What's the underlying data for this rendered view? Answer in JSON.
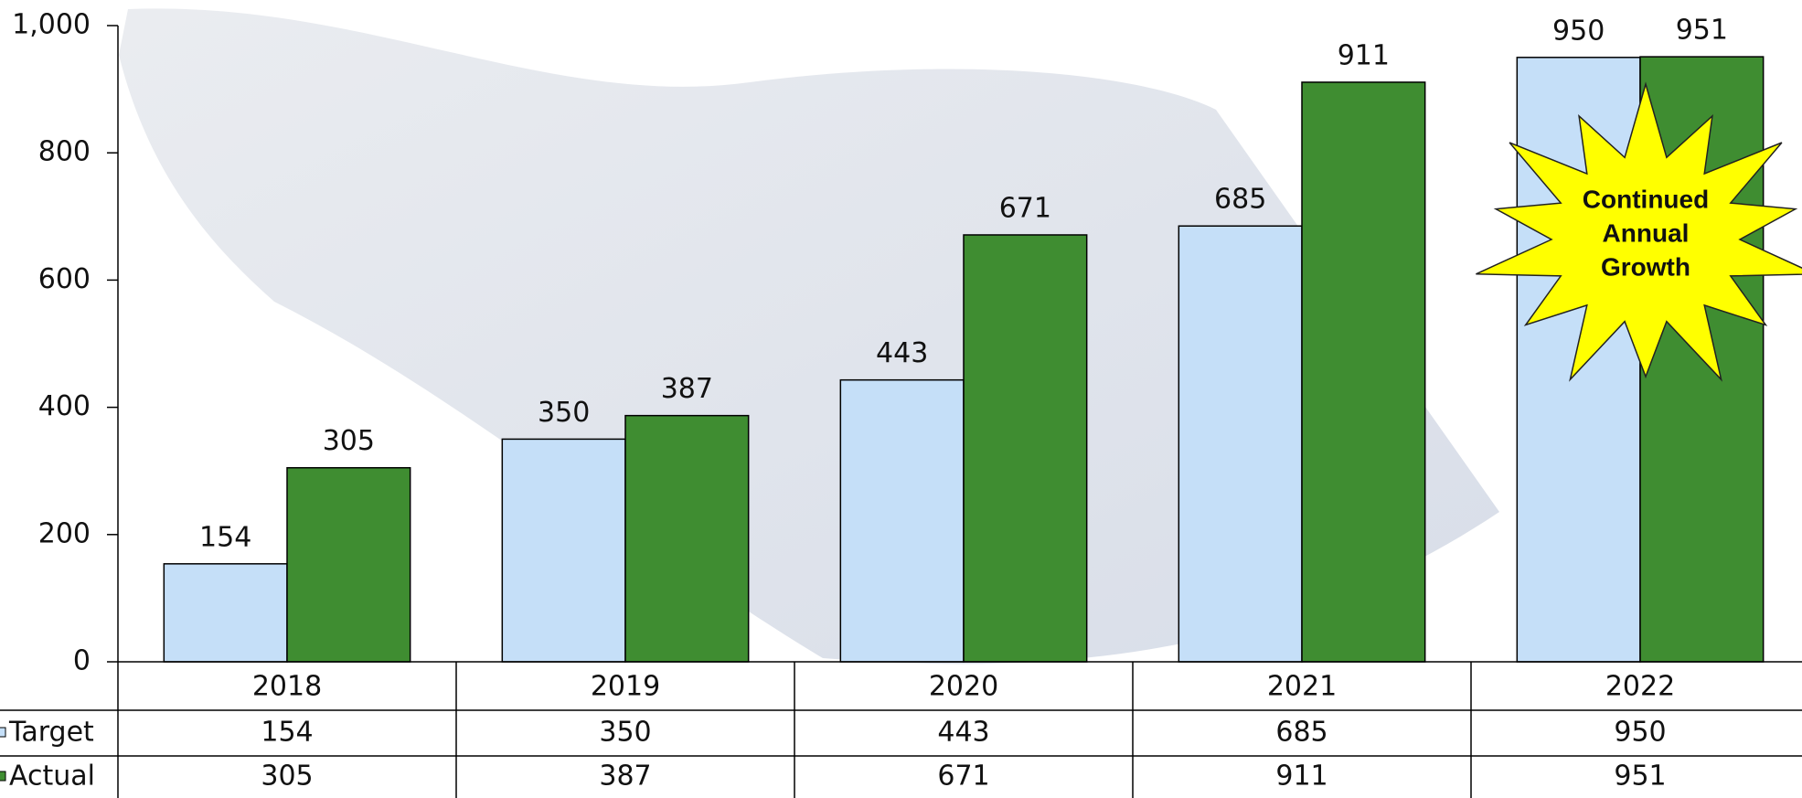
{
  "chart_data": {
    "type": "bar",
    "categories": [
      "2018",
      "2019",
      "2020",
      "2021",
      "2022"
    ],
    "series": [
      {
        "name": "Target",
        "color": "#c5dff8",
        "values": [
          154,
          350,
          443,
          685,
          950
        ]
      },
      {
        "name": "Actual",
        "color": "#3f8d31",
        "values": [
          305,
          387,
          671,
          911,
          951
        ]
      }
    ],
    "ylim": [
      0,
      1000
    ],
    "yticks": [
      0,
      200,
      400,
      600,
      800,
      {
        "value": 1000,
        "label": "1,000"
      }
    ],
    "annotation": [
      "Continued",
      "Annual",
      "Growth"
    ],
    "annotation_color": "#ffff00",
    "data_table": true
  }
}
